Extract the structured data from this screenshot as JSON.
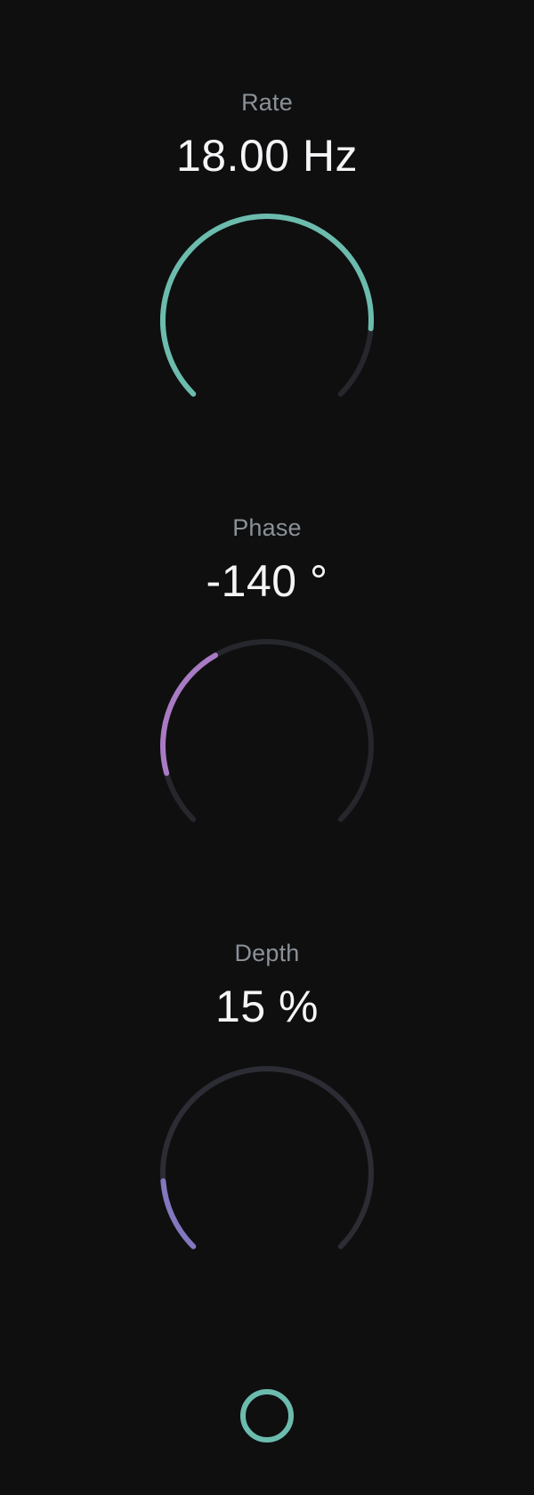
{
  "colors": {
    "background": "#0f0f10",
    "label": "#8a9197",
    "value": "#f4f5f6",
    "track": "#26272d",
    "track_alt": "#2c2d34"
  },
  "knobs": [
    {
      "label": "Rate",
      "value": "18.00 Hz",
      "fill_fraction": 0.85,
      "accent": "#6cbcae",
      "track": "#26272d"
    },
    {
      "label": "Phase",
      "value": "-140 °",
      "fill_fraction": 0.39,
      "accent": "#a97bc4",
      "track": "#26272d",
      "fill_from_fraction": 0.11
    },
    {
      "label": "Depth",
      "value": "15 %",
      "fill_fraction": 0.15,
      "accent": "#8178c0",
      "track": "#2c2d34"
    }
  ],
  "bottom_toggle": {
    "icon": "circle-ring-icon",
    "color": "#6cbcae"
  }
}
